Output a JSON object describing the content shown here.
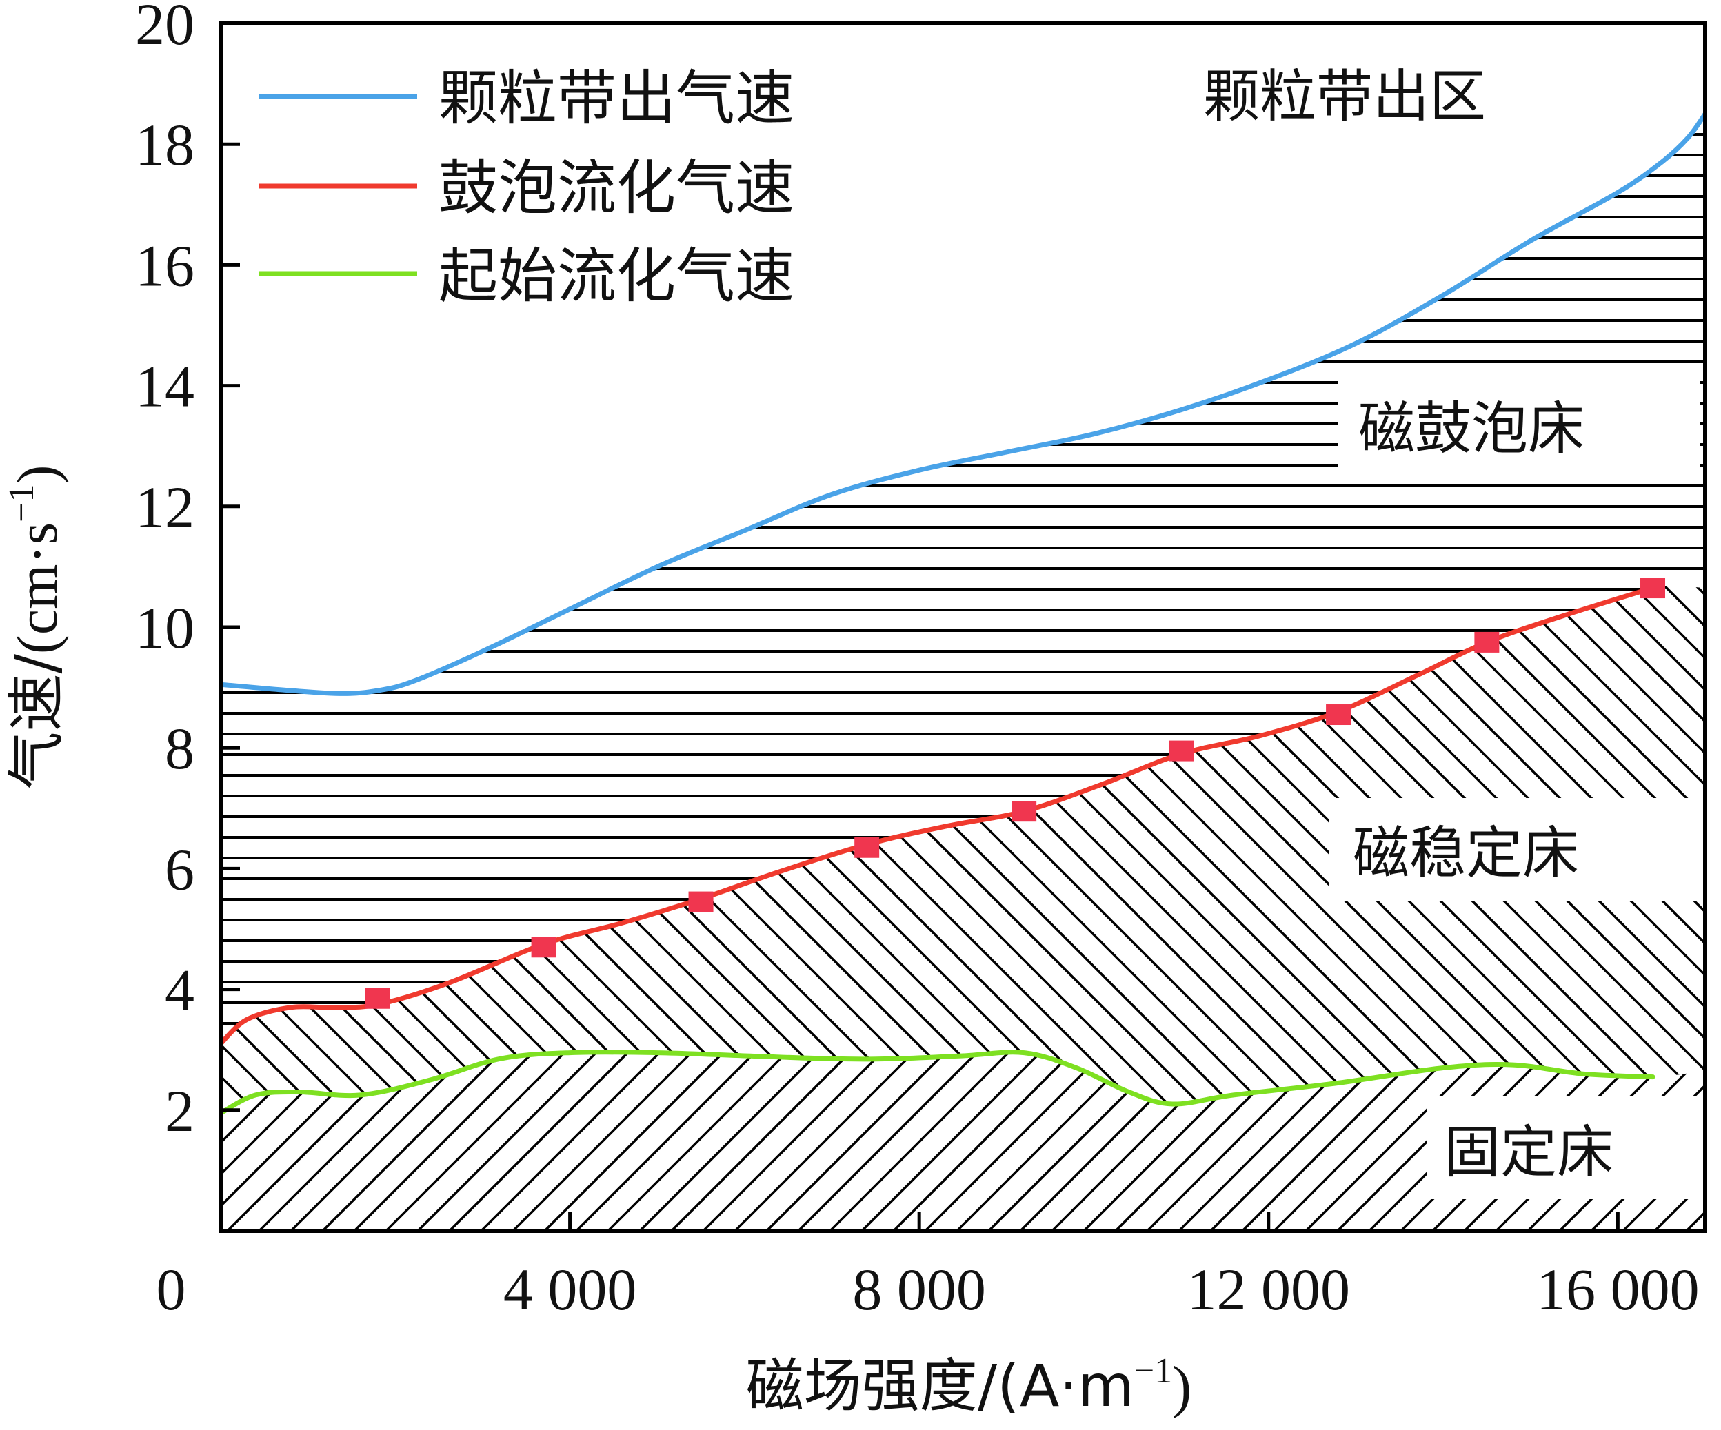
{
  "colors": {
    "blue": "#4aa3e8",
    "red": "#f03a2e",
    "green": "#7ee021",
    "marker": "#f0364f"
  },
  "chart_data": {
    "type": "line",
    "xlabel": "磁场强度/(A·m",
    "xlabel_sup": "−1",
    "xlabel_close": ")",
    "ylabel_main": "气速/",
    "ylabel_unit": "(cm·s",
    "ylabel_sup": "−1",
    "ylabel_close": ")",
    "xlim": [
      0,
      17000
    ],
    "ylim": [
      0,
      20
    ],
    "x_ticks": [
      {
        "value": 0,
        "label": "0"
      },
      {
        "value": 4000,
        "label": "4 000"
      },
      {
        "value": 8000,
        "label": "8 000"
      },
      {
        "value": 12000,
        "label": "12 000"
      },
      {
        "value": 16000,
        "label": "16 000"
      }
    ],
    "y_ticks": [
      {
        "value": 2,
        "label": "2"
      },
      {
        "value": 4,
        "label": "4"
      },
      {
        "value": 6,
        "label": "6"
      },
      {
        "value": 8,
        "label": "8"
      },
      {
        "value": 10,
        "label": "10"
      },
      {
        "value": 12,
        "label": "12"
      },
      {
        "value": 14,
        "label": "14"
      },
      {
        "value": 16,
        "label": "16"
      },
      {
        "value": 18,
        "label": "18"
      },
      {
        "value": 20,
        "label": "20"
      }
    ],
    "legend_position": "top-left",
    "series": [
      {
        "name": "颗粒带出气速",
        "color": "#4aa3e8",
        "x": [
          0,
          800,
          1400,
          1800,
          2200,
          3000,
          4000,
          5000,
          6000,
          7000,
          8000,
          9000,
          10000,
          11000,
          12000,
          13000,
          14000,
          15000,
          16000,
          16500,
          16800,
          17000
        ],
        "y": [
          9.05,
          8.95,
          8.9,
          8.95,
          9.1,
          9.6,
          10.3,
          11.0,
          11.6,
          12.2,
          12.6,
          12.9,
          13.2,
          13.6,
          14.1,
          14.7,
          15.5,
          16.4,
          17.2,
          17.7,
          18.1,
          18.5
        ]
      },
      {
        "name": "鼓泡流化气速",
        "color": "#f03a2e",
        "x": [
          0,
          300,
          800,
          1300,
          1800,
          2600,
          3700,
          4600,
          5500,
          6400,
          7400,
          8300,
          9200,
          10100,
          11000,
          11900,
          12800,
          13700,
          14500,
          15400,
          16400
        ],
        "y": [
          3.1,
          3.5,
          3.7,
          3.7,
          3.75,
          4.1,
          4.75,
          5.1,
          5.5,
          5.95,
          6.4,
          6.7,
          6.95,
          7.4,
          7.9,
          8.2,
          8.6,
          9.2,
          9.75,
          10.2,
          10.65
        ]
      },
      {
        "name": "起始流化气速",
        "color": "#7ee021",
        "x": [
          0,
          400,
          900,
          1600,
          2400,
          3200,
          4000,
          5000,
          6000,
          7000,
          7700,
          8500,
          9200,
          9800,
          10400,
          10900,
          11600,
          12800,
          14000,
          14800,
          15600,
          16400
        ],
        "y": [
          1.95,
          2.25,
          2.3,
          2.25,
          2.5,
          2.85,
          2.95,
          2.95,
          2.9,
          2.85,
          2.85,
          2.9,
          2.95,
          2.7,
          2.3,
          2.1,
          2.25,
          2.45,
          2.7,
          2.75,
          2.6,
          2.55
        ]
      }
    ],
    "markers": {
      "series": "鼓泡流化气速",
      "x": [
        1800,
        3700,
        5500,
        7400,
        9200,
        11000,
        12800,
        14500,
        16400
      ],
      "y": [
        3.85,
        4.7,
        5.45,
        6.35,
        6.95,
        7.95,
        8.55,
        9.75,
        10.65
      ]
    },
    "regions": [
      {
        "label": "颗粒带出区"
      },
      {
        "label": "磁鼓泡床"
      },
      {
        "label": "磁稳定床"
      },
      {
        "label": "固定床"
      }
    ]
  }
}
